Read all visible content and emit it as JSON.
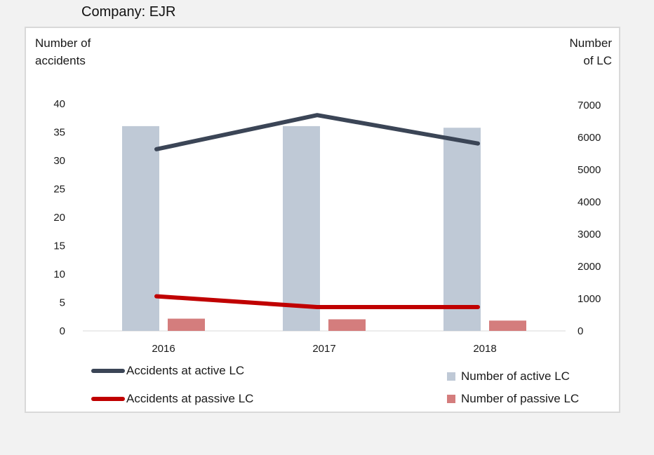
{
  "company_label": "Company: EJR",
  "chart_data": {
    "type": "bar+line",
    "categories": [
      "2016",
      "2017",
      "2018"
    ],
    "left_axis": {
      "title": "Number of accidents",
      "title_lines": [
        "Number of",
        "accidents"
      ],
      "range": [
        0,
        40
      ],
      "ticks": [
        "0",
        "5",
        "10",
        "15",
        "20",
        "25",
        "30",
        "35",
        "40"
      ]
    },
    "right_axis": {
      "title": "Number of LC",
      "title_lines": [
        "Number",
        "of LC"
      ],
      "range": [
        0,
        7000
      ],
      "ticks": [
        "0",
        "1000",
        "2000",
        "3000",
        "4000",
        "5000",
        "6000",
        "7000"
      ]
    },
    "series": [
      {
        "name": "Accidents at active LC",
        "kind": "line",
        "axis": "left",
        "color": "#3b4556",
        "values": [
          32,
          38,
          33
        ]
      },
      {
        "name": "Accidents at passive LC",
        "kind": "line",
        "axis": "left",
        "color": "#c00000",
        "values": [
          6.1,
          4.2,
          4.2
        ]
      },
      {
        "name": "Number of active LC",
        "kind": "bar",
        "axis": "right",
        "color": "#bfc9d6",
        "values": [
          6350,
          6350,
          6300
        ]
      },
      {
        "name": "Number of passive LC",
        "kind": "bar",
        "axis": "right",
        "color": "#d47d7d",
        "values": [
          380,
          360,
          320
        ]
      }
    ],
    "grid": false
  }
}
